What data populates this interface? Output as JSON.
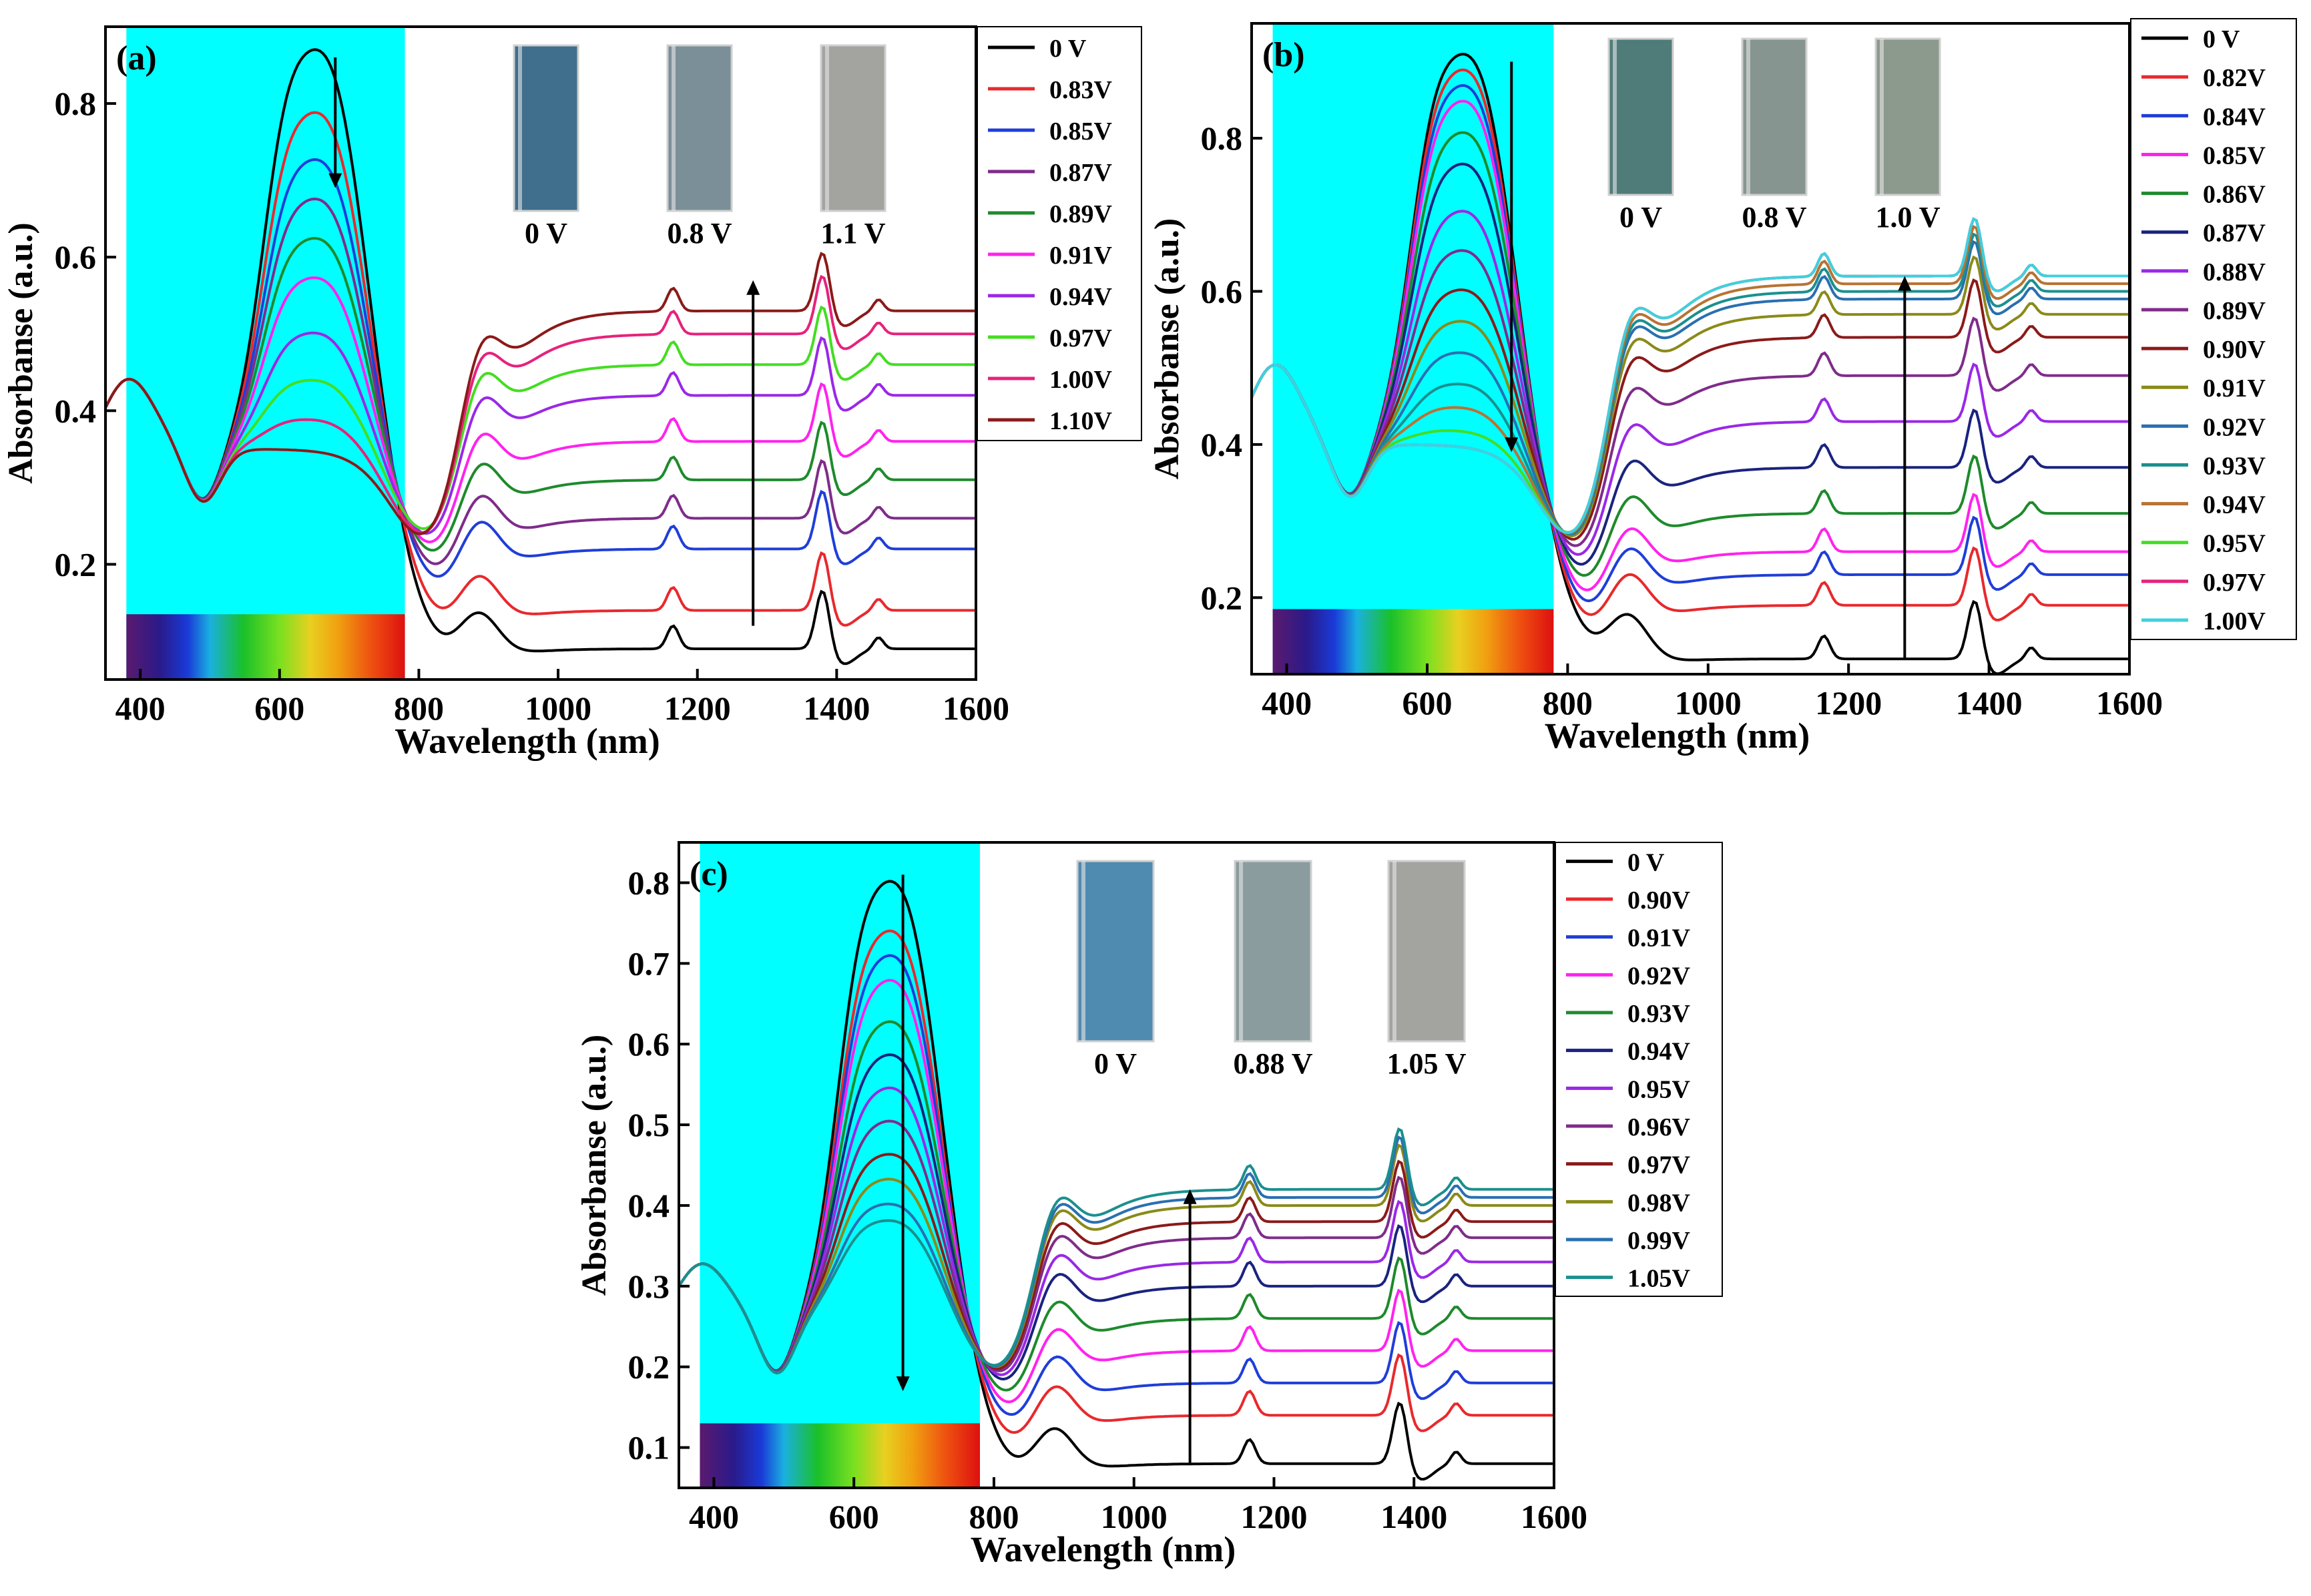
{
  "chart_data": [
    {
      "type": "line",
      "panel_label": "(a)",
      "xlabel": "Wavelength (nm)",
      "ylabel": "Absorbanse (a.u.)",
      "xlim": [
        350,
        1600
      ],
      "ylim": [
        0.05,
        0.9
      ],
      "xticks": [
        400,
        600,
        800,
        1000,
        1200,
        1400,
        1600
      ],
      "yticks": [
        0.2,
        0.4,
        0.6,
        0.8
      ],
      "highlight_region": [
        380,
        780
      ],
      "spectrum_bar": true,
      "legend_position": "right-outside",
      "photos": [
        {
          "label": "0 V",
          "color": "#3f6f8c"
        },
        {
          "label": "0.8 V",
          "color": "#7a8f98"
        },
        {
          "label": "1.1 V",
          "color": "#a3a3a0"
        }
      ],
      "arrows": [
        {
          "x": 680,
          "from": 0.86,
          "to": 0.69
        },
        {
          "x": 1280,
          "from": 0.12,
          "to": 0.57
        }
      ],
      "series": [
        {
          "name": "0 V",
          "color": "#000000",
          "vis": 0.86,
          "iso": 0.35,
          "nir": 0.09,
          "band": 0.04
        },
        {
          "name": "0.83V",
          "color": "#e8292d",
          "vis": 0.78,
          "iso": 0.35,
          "nir": 0.14,
          "band": 0.07
        },
        {
          "name": "0.85V",
          "color": "#1f3ed8",
          "vis": 0.72,
          "iso": 0.35,
          "nir": 0.22,
          "band": 0.1
        },
        {
          "name": "0.87V",
          "color": "#7f2c8a",
          "vis": 0.67,
          "iso": 0.35,
          "nir": 0.26,
          "band": 0.11
        },
        {
          "name": "0.89V",
          "color": "#1e8a2c",
          "vis": 0.62,
          "iso": 0.35,
          "nir": 0.31,
          "band": 0.12
        },
        {
          "name": "0.91V",
          "color": "#ff22ee",
          "vis": 0.57,
          "iso": 0.35,
          "nir": 0.36,
          "band": 0.12
        },
        {
          "name": "0.94V",
          "color": "#9a28e6",
          "vis": 0.5,
          "iso": 0.35,
          "nir": 0.42,
          "band": 0.12
        },
        {
          "name": "0.97V",
          "color": "#44dd22",
          "vis": 0.44,
          "iso": 0.35,
          "nir": 0.46,
          "band": 0.12
        },
        {
          "name": "1.00V",
          "color": "#e6227c",
          "vis": 0.39,
          "iso": 0.35,
          "nir": 0.5,
          "band": 0.1
        },
        {
          "name": "1.10V",
          "color": "#8b1a1a",
          "vis": 0.34,
          "iso": 0.35,
          "nir": 0.53,
          "band": 0.09
        }
      ]
    },
    {
      "type": "line",
      "panel_label": "(b)",
      "xlabel": "Wavelength (nm)",
      "ylabel": "Absorbanse (a.u.)",
      "xlim": [
        350,
        1600
      ],
      "ylim": [
        0.1,
        0.95
      ],
      "xticks": [
        400,
        600,
        800,
        1000,
        1200,
        1400,
        1600
      ],
      "yticks": [
        0.2,
        0.4,
        0.6,
        0.8
      ],
      "highlight_region": [
        380,
        780
      ],
      "spectrum_bar": true,
      "legend_position": "right-outside",
      "photos": [
        {
          "label": "0 V",
          "color": "#4f7c78"
        },
        {
          "label": "0.8 V",
          "color": "#86958f"
        },
        {
          "label": "1.0 V",
          "color": "#8c9a8d"
        }
      ],
      "arrows": [
        {
          "x": 720,
          "from": 0.9,
          "to": 0.39
        },
        {
          "x": 1280,
          "from": 0.12,
          "to": 0.62
        }
      ],
      "series": [
        {
          "name": "0 V",
          "color": "#000000",
          "vis": 0.9,
          "iso": 0.4,
          "nir": 0.12,
          "band": 0.09
        },
        {
          "name": "0.82V",
          "color": "#e8292d",
          "vis": 0.88,
          "iso": 0.4,
          "nir": 0.19,
          "band": 0.09
        },
        {
          "name": "0.84V",
          "color": "#1f3ed8",
          "vis": 0.86,
          "iso": 0.4,
          "nir": 0.23,
          "band": 0.1
        },
        {
          "name": "0.85V",
          "color": "#ff22ee",
          "vis": 0.84,
          "iso": 0.4,
          "nir": 0.26,
          "band": 0.11
        },
        {
          "name": "0.86V",
          "color": "#1e8a2c",
          "vis": 0.8,
          "iso": 0.4,
          "nir": 0.31,
          "band": 0.12
        },
        {
          "name": "0.87V",
          "color": "#1a237e",
          "vis": 0.76,
          "iso": 0.4,
          "nir": 0.37,
          "band": 0.12
        },
        {
          "name": "0.88V",
          "color": "#9a28e6",
          "vis": 0.7,
          "iso": 0.4,
          "nir": 0.43,
          "band": 0.12
        },
        {
          "name": "0.89V",
          "color": "#7f2c8a",
          "vis": 0.65,
          "iso": 0.4,
          "nir": 0.49,
          "band": 0.12
        },
        {
          "name": "0.90V",
          "color": "#8b1a1a",
          "vis": 0.6,
          "iso": 0.4,
          "nir": 0.54,
          "band": 0.12
        },
        {
          "name": "0.91V",
          "color": "#8a8a1a",
          "vis": 0.56,
          "iso": 0.4,
          "nir": 0.57,
          "band": 0.12
        },
        {
          "name": "0.92V",
          "color": "#2a6fb0",
          "vis": 0.52,
          "iso": 0.4,
          "nir": 0.59,
          "band": 0.12
        },
        {
          "name": "0.93V",
          "color": "#1b8f8f",
          "vis": 0.48,
          "iso": 0.4,
          "nir": 0.6,
          "band": 0.12
        },
        {
          "name": "0.94V",
          "color": "#b87333",
          "vis": 0.45,
          "iso": 0.4,
          "nir": 0.61,
          "band": 0.12
        },
        {
          "name": "0.95V",
          "color": "#44dd22",
          "vis": 0.42,
          "iso": 0.4,
          "nir": 0.62,
          "band": 0.12
        },
        {
          "name": "0.97V",
          "color": "#e6227c",
          "vis": 0.4,
          "iso": 0.4,
          "nir": 0.62,
          "band": 0.12
        },
        {
          "name": "1.00V",
          "color": "#3fd0e0",
          "vis": 0.38,
          "iso": 0.4,
          "nir": 0.62,
          "band": 0.12
        }
      ]
    },
    {
      "type": "line",
      "panel_label": "(c)",
      "xlabel": "Wavelength (nm)",
      "ylabel": "Absorbanse (a.u.)",
      "xlim": [
        350,
        1600
      ],
      "ylim": [
        0.05,
        0.85
      ],
      "xticks": [
        400,
        600,
        800,
        1000,
        1200,
        1400,
        1600
      ],
      "yticks": [
        0.1,
        0.2,
        0.3,
        0.4,
        0.5,
        0.6,
        0.7,
        0.8
      ],
      "highlight_region": [
        380,
        780
      ],
      "spectrum_bar": true,
      "legend_position": "right-outside",
      "photos": [
        {
          "label": "0 V",
          "color": "#4f8bb0"
        },
        {
          "label": "0.88 V",
          "color": "#8a9c9e"
        },
        {
          "label": "1.05 V",
          "color": "#a3a3a0"
        }
      ],
      "arrows": [
        {
          "x": 670,
          "from": 0.81,
          "to": 0.17
        },
        {
          "x": 1080,
          "from": 0.08,
          "to": 0.42
        }
      ],
      "series": [
        {
          "name": "0 V",
          "color": "#000000",
          "vis": 0.79,
          "iso": 0.26,
          "nir": 0.08,
          "band": 0.03
        },
        {
          "name": "0.90V",
          "color": "#e8292d",
          "vis": 0.73,
          "iso": 0.26,
          "nir": 0.14,
          "band": 0.05
        },
        {
          "name": "0.91V",
          "color": "#1f3ed8",
          "vis": 0.7,
          "iso": 0.26,
          "nir": 0.18,
          "band": 0.07
        },
        {
          "name": "0.92V",
          "color": "#ff22ee",
          "vis": 0.67,
          "iso": 0.26,
          "nir": 0.22,
          "band": 0.08
        },
        {
          "name": "0.93V",
          "color": "#1e8a2c",
          "vis": 0.62,
          "iso": 0.26,
          "nir": 0.26,
          "band": 0.09
        },
        {
          "name": "0.94V",
          "color": "#1a237e",
          "vis": 0.58,
          "iso": 0.26,
          "nir": 0.3,
          "band": 0.1
        },
        {
          "name": "0.95V",
          "color": "#9a28e6",
          "vis": 0.54,
          "iso": 0.26,
          "nir": 0.33,
          "band": 0.1
        },
        {
          "name": "0.96V",
          "color": "#7f2c8a",
          "vis": 0.5,
          "iso": 0.26,
          "nir": 0.36,
          "band": 0.1
        },
        {
          "name": "0.97V",
          "color": "#8b1a1a",
          "vis": 0.46,
          "iso": 0.26,
          "nir": 0.38,
          "band": 0.1
        },
        {
          "name": "0.98V",
          "color": "#8a8a1a",
          "vis": 0.43,
          "iso": 0.26,
          "nir": 0.4,
          "band": 0.1
        },
        {
          "name": "0.99V",
          "color": "#2a6fb0",
          "vis": 0.4,
          "iso": 0.26,
          "nir": 0.41,
          "band": 0.1
        },
        {
          "name": "1.05V",
          "color": "#1b8f8f",
          "vis": 0.38,
          "iso": 0.26,
          "nir": 0.42,
          "band": 0.1
        }
      ]
    }
  ]
}
